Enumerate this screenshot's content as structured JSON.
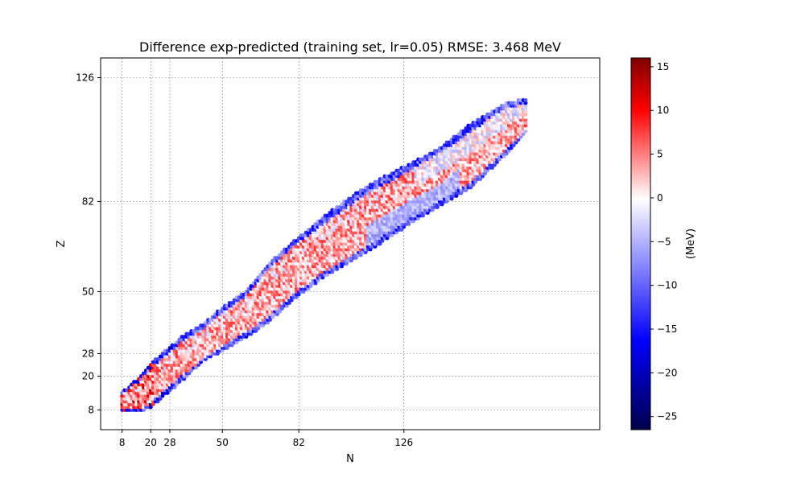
{
  "chart_data": {
    "type": "scatter",
    "title": "Difference exp-predicted (training set, lr=0.05)  RMSE: 3.468 MeV",
    "xlabel": "N",
    "ylabel": "Z",
    "xlim": [
      -1,
      208
    ],
    "ylim": [
      1,
      133
    ],
    "xticks": [
      8,
      20,
      28,
      50,
      82,
      126
    ],
    "yticks": [
      8,
      20,
      28,
      50,
      82,
      126
    ],
    "grid": true,
    "grid_color": "#808080",
    "colorbar": {
      "label": "(MeV)",
      "min": -26.5,
      "max": 16,
      "ticks": [
        -25,
        -20,
        -15,
        -10,
        -5,
        0,
        5,
        10,
        15
      ],
      "colormap": "seismic",
      "colors": [
        "#00004c",
        "#0000ff",
        "#ffffff",
        "#ff0000",
        "#800000"
      ]
    },
    "series": [
      {
        "description": "each point = one nucleus (N, Z); color = exp - predicted binding energy difference",
        "bands": [
          {
            "N": 8,
            "Z_min": 8,
            "Z_max": 14
          },
          {
            "N": 15,
            "Z_min": 8,
            "Z_max": 19
          },
          {
            "N": 20,
            "Z_min": 9,
            "Z_max": 24
          },
          {
            "N": 28,
            "Z_min": 15,
            "Z_max": 30
          },
          {
            "N": 35,
            "Z_min": 20,
            "Z_max": 35
          },
          {
            "N": 42,
            "Z_min": 26,
            "Z_max": 38
          },
          {
            "N": 50,
            "Z_min": 29,
            "Z_max": 44
          },
          {
            "N": 60,
            "Z_min": 34,
            "Z_max": 50
          },
          {
            "N": 70,
            "Z_min": 40,
            "Z_max": 60
          },
          {
            "N": 82,
            "Z_min": 49,
            "Z_max": 69
          },
          {
            "N": 95,
            "Z_min": 57,
            "Z_max": 78
          },
          {
            "N": 110,
            "Z_min": 64,
            "Z_max": 87
          },
          {
            "N": 126,
            "Z_min": 73,
            "Z_max": 94
          },
          {
            "N": 140,
            "Z_min": 80,
            "Z_max": 100
          },
          {
            "N": 155,
            "Z_min": 88,
            "Z_max": 110
          },
          {
            "N": 170,
            "Z_min": 100,
            "Z_max": 117
          },
          {
            "N": 177,
            "Z_min": 107,
            "Z_max": 118
          }
        ]
      }
    ]
  }
}
